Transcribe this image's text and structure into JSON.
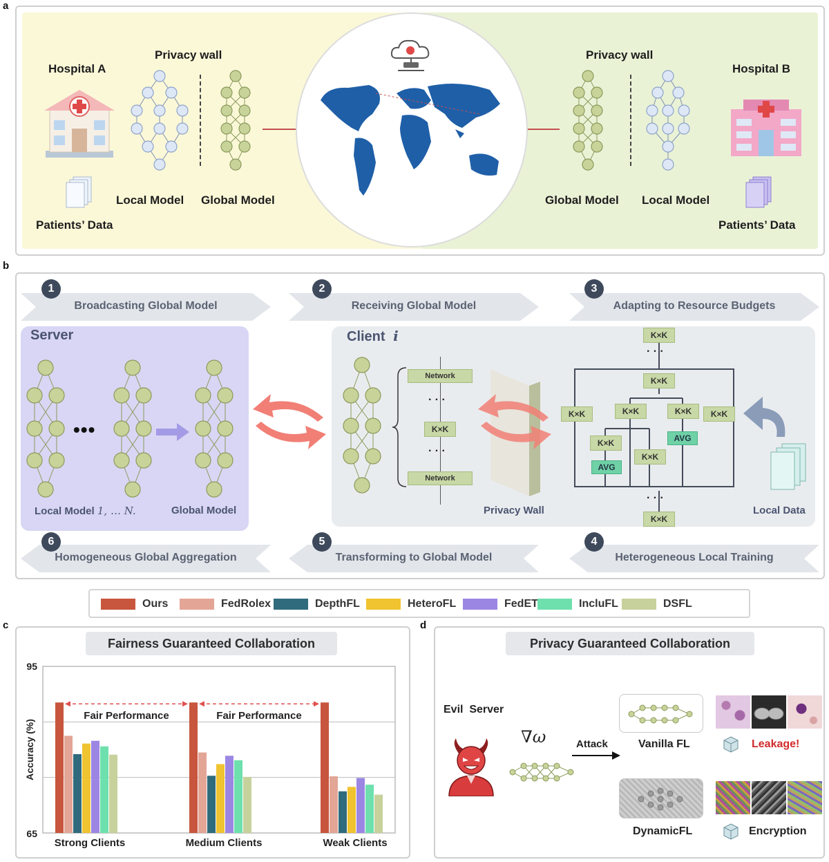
{
  "panel_a": {
    "letter": "a",
    "hospital_a": "Hospital A",
    "hospital_b": "Hospital B",
    "privacy_wall_left": "Privacy wall",
    "privacy_wall_right": "Privacy wall",
    "local_model_left": "Local Model",
    "global_model_left": "Global Model",
    "global_model_right": "Global Model",
    "local_model_right": "Local Model",
    "patients_data_left": "Patients’ Data",
    "patients_data_right": "Patients’ Data"
  },
  "panel_b": {
    "letter": "b",
    "steps": [
      {
        "num": "1",
        "label": "Broadcasting Global Model"
      },
      {
        "num": "2",
        "label": "Receiving Global Model"
      },
      {
        "num": "3",
        "label": "Adapting to Resource Budgets"
      },
      {
        "num": "6",
        "label": "Homogeneous Global Aggregation"
      },
      {
        "num": "5",
        "label": "Transforming to Global Model"
      },
      {
        "num": "4",
        "label": "Heterogeneous Local Training"
      }
    ],
    "server_title": "Server",
    "client_title": "Client",
    "client_index": "i",
    "local_model_prefix": "Local Model",
    "local_model_range": "1, … N.",
    "global_model": "Global Model",
    "ellipsis": "•••",
    "network_top": "Network",
    "network_bottom": "Network",
    "kxk": "K×K",
    "avg": "AVG",
    "dots": "· · ·",
    "privacy_wall": "Privacy Wall",
    "local_data": "Local Data"
  },
  "legend": [
    {
      "name": "Ours",
      "color": "#c8553d"
    },
    {
      "name": "FedRolex",
      "color": "#e3a596"
    },
    {
      "name": "DepthFL",
      "color": "#2f6b7c"
    },
    {
      "name": "HeteroFL",
      "color": "#f0c330"
    },
    {
      "name": "FedET",
      "color": "#9b86e3"
    },
    {
      "name": "IncluFL",
      "color": "#6ee0ad"
    },
    {
      "name": "DSFL",
      "color": "#c6d19c"
    }
  ],
  "panel_c": {
    "letter": "c",
    "title": "Fairness Guaranteed Collaboration",
    "annotation": "Fair Performance",
    "chart_data": {
      "type": "bar",
      "title": "Fairness Guaranteed Collaboration",
      "ylabel": "Accuracy (%)",
      "ylim": [
        65,
        95
      ],
      "y_tick_labels": [
        "95",
        "65"
      ],
      "categories": [
        "Strong Clients",
        "Medium Clients",
        "Weak Clients"
      ],
      "series": [
        {
          "name": "Ours",
          "values": [
            88.5,
            88.5,
            88.5
          ]
        },
        {
          "name": "FedRolex",
          "values": [
            82.5,
            79.5,
            75.2
          ]
        },
        {
          "name": "DepthFL",
          "values": [
            79.2,
            75.3,
            72.5
          ]
        },
        {
          "name": "HeteroFL",
          "values": [
            81.1,
            77.4,
            73.3
          ]
        },
        {
          "name": "FedET",
          "values": [
            81.6,
            78.9,
            74.9
          ]
        },
        {
          "name": "IncluFL",
          "values": [
            80.6,
            78.1,
            73.7
          ]
        },
        {
          "name": "DSFL",
          "values": [
            79.1,
            75.1,
            71.9
          ]
        }
      ]
    }
  },
  "panel_d": {
    "letter": "d",
    "title": "Privacy Guaranteed Collaboration",
    "evil_server": "Evil  Server",
    "gradient": "∇ω",
    "attack": "Attack",
    "vanilla_fl": "Vanilla FL",
    "leakage": "Leakage!",
    "dynamic_fl": "DynamicFL",
    "encryption": "Encryption"
  }
}
